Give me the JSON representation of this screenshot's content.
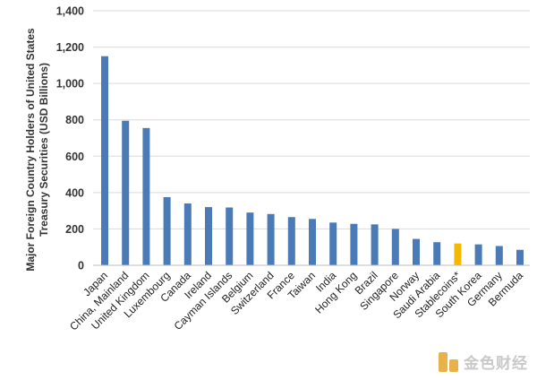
{
  "chart_data": {
    "type": "bar",
    "ylabel_line1": "Major Foreign Country Holders of United States",
    "ylabel_line2": "Treasury Securities  (USD Billions)",
    "ylim": [
      0,
      1400
    ],
    "yticks": [
      0,
      200,
      400,
      600,
      800,
      1000,
      1200,
      1400
    ],
    "ytick_labels": [
      "0",
      "200",
      "400",
      "600",
      "800",
      "1,000",
      "1,200",
      "1,400"
    ],
    "grid": true,
    "categories": [
      "Japan",
      "China, Mainland",
      "United Kingdom",
      "Luxembourg",
      "Canada",
      "Ireland",
      "Cayman Islands",
      "Belgium",
      "Switzerland",
      "France",
      "Taiwan",
      "India",
      "Hong Kong",
      "Brazil",
      "Singapore",
      "Norway",
      "Saudi Arabia",
      "Stablecoins*",
      "South Korea",
      "Germany",
      "Bermuda"
    ],
    "values": [
      1150,
      795,
      755,
      375,
      340,
      320,
      318,
      290,
      282,
      265,
      255,
      235,
      228,
      225,
      200,
      145,
      127,
      120,
      115,
      106,
      85
    ],
    "bar_color": "#4a7bb7",
    "highlight_color": "#f5b800",
    "highlight_index": 17
  },
  "watermark": {
    "text": "金色财经",
    "logo": "jinse-logo-icon"
  }
}
